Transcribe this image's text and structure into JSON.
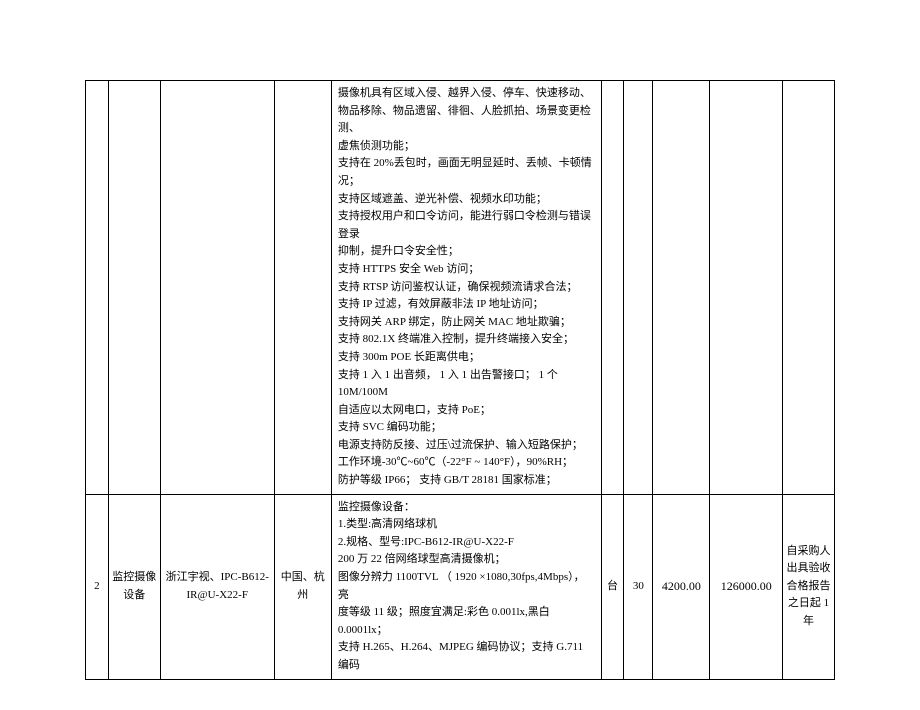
{
  "table": {
    "rows": [
      {
        "num": "",
        "name": "",
        "brand": "",
        "origin": "",
        "spec_lines": [
          "摄像机具有区域入侵、越界入侵、停车、快速移动、",
          "物品移除、物品遗留、徘徊、人脸抓拍、场景变更检测、",
          "虚焦侦测功能；",
          "支持在 20%丢包时，画面无明显延时、丢帧、卡顿情况；",
          "支持区域遮盖、逆光补偿、视频水印功能；",
          "支持授权用户和口令访问，能进行弱口令检测与错误登录",
          "抑制，提升口令安全性；",
          "支持 HTTPS 安全 Web 访问；",
          "支持 RTSP 访问鉴权认证，确保视频流请求合法；",
          "支持 IP 过滤，有效屏蔽非法 IP 地址访问；",
          "支持网关 ARP 绑定，防止网关 MAC 地址欺骗；",
          "支持 802.1X 终端准入控制，提升终端接入安全；",
          "支持 300m POE 长距离供电；",
          "支持 1 入 1 出音频， 1 入 1 出告警接口； 1 个 10M/100M",
          "自适应以太网电口，支持 PoE；",
          "支持 SVC 编码功能；",
          "电源支持防反接、过压\\过流保护、输入短路保护；",
          "工作环境-30℃~60℃（-22°F ~ 140°F），90%RH；",
          "防护等级 IP66；  支持 GB/T 28181 国家标准；"
        ],
        "unit": "",
        "qty": "",
        "price": "",
        "total": "",
        "remark": ""
      },
      {
        "num": "2",
        "name": "监控摄像设备",
        "brand": "浙江宇视、IPC-B612-IR@U-X22-F",
        "origin": "中国、杭州",
        "spec_lines": [
          "监控摄像设备：",
          "1.类型:高清网络球机",
          "2.规格、型号:IPC-B612-IR@U-X22-F",
          "200 万 22 倍网络球型高清摄像机；",
          "图像分辨力 1100TVL （ 1920 ×1080,30fps,4Mbps），亮",
          "度等级 11 级；照度宜满足:彩色 0.001lx,黑白 0.0001lx；",
          "支持 H.265、H.264、MJPEG 编码协议；支持 G.711 编码"
        ],
        "unit": "台",
        "qty": "30",
        "price": "4200.00",
        "total": "126000.00",
        "remark": "自采购人出具验收合格报告之日起 1 年"
      }
    ]
  }
}
